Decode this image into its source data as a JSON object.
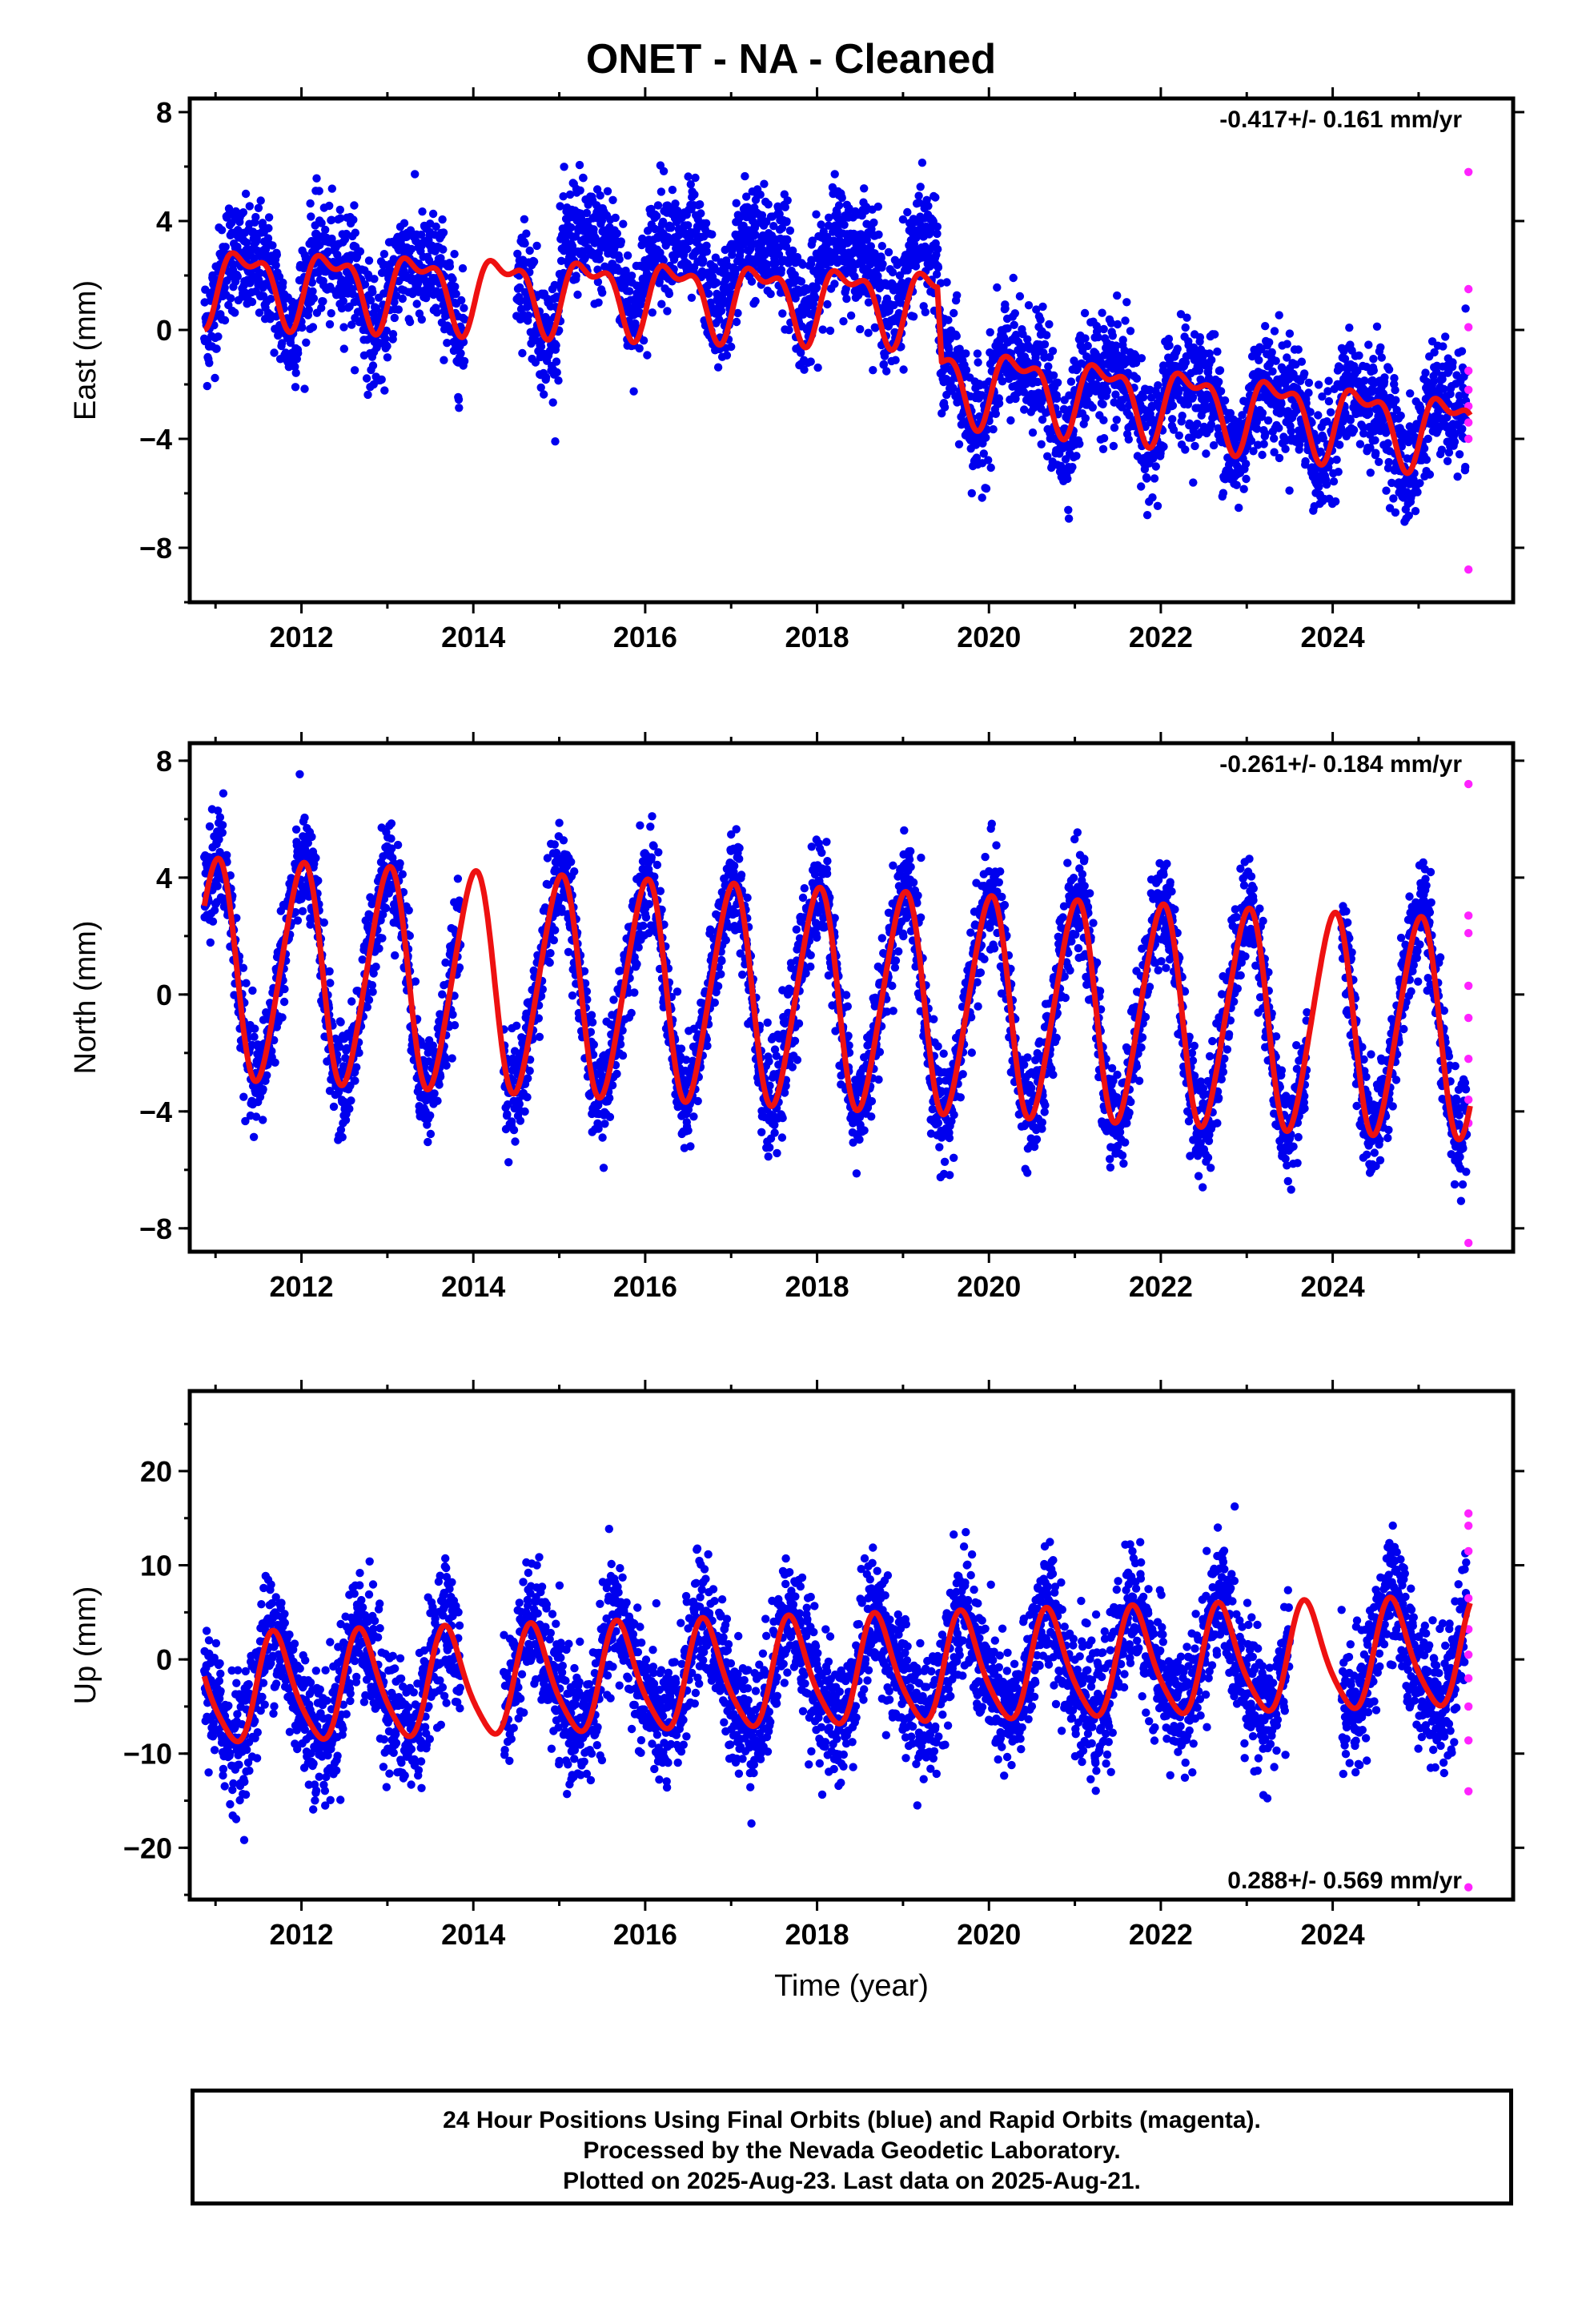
{
  "title": "ONET  - NA - Cleaned",
  "colors": {
    "final": "#0000ee",
    "rapid": "#ff22ff",
    "model": "#ee1111"
  },
  "chart_data": [
    {
      "type": "scatter",
      "component": "East",
      "ylabel": "East (mm)",
      "xlim": [
        2010.7,
        2026.1
      ],
      "ylim": [
        -10,
        8.5
      ],
      "yticks": [
        8,
        4,
        0,
        -4,
        -8
      ],
      "xticks": [
        2012,
        2014,
        2016,
        2018,
        2020,
        2022,
        2024
      ],
      "rate_label": "-0.417+/- 0.161 mm/yr",
      "rate_position": "top-right",
      "trend": {
        "offsets": [
          [
            2010.85,
            1.8
          ],
          [
            2019.4,
            1.0
          ],
          [
            2019.45,
            -1.8
          ],
          [
            2025.6,
            -3.7
          ]
        ],
        "annual_amp": 1.2,
        "semi_amp": 0.6
      },
      "scatter_sd": 1.4,
      "gaps": [
        [
          2013.9,
          2014.5
        ]
      ],
      "rapid_points_x": 2025.58,
      "rapid_points_y": [
        5.8,
        1.5,
        0.1,
        -1.5,
        -2.2,
        -2.8,
        -3.4,
        -4.0,
        -8.8
      ]
    },
    {
      "type": "scatter",
      "component": "North",
      "ylabel": "North (mm)",
      "xlim": [
        2010.7,
        2026.1
      ],
      "ylim": [
        -8.8,
        8.6
      ],
      "yticks": [
        8,
        4,
        0,
        -4,
        -8
      ],
      "xticks": [
        2012,
        2014,
        2016,
        2018,
        2020,
        2022,
        2024
      ],
      "rate_label": "-0.261+/- 0.184 mm/yr",
      "rate_position": "top-right",
      "trend": {
        "offsets": [
          [
            2010.85,
            0.9
          ],
          [
            2025.6,
            -1.2
          ]
        ],
        "annual_amp": 3.7,
        "semi_amp": 0.4
      },
      "scatter_sd": 1.2,
      "gaps": [
        [
          2013.85,
          2014.35
        ],
        [
          2023.7,
          2024.1
        ]
      ],
      "rapid_points_x": 2025.58,
      "rapid_points_y": [
        7.2,
        2.7,
        2.1,
        0.3,
        -0.8,
        -2.2,
        -3.6,
        -4.4,
        -8.5
      ]
    },
    {
      "type": "scatter",
      "component": "Up",
      "ylabel": "Up (mm)",
      "xlabel": "Time (year)",
      "xlim": [
        2010.7,
        2026.1
      ],
      "ylim": [
        -25.5,
        28.5
      ],
      "yticks": [
        20,
        10,
        0,
        -10,
        -20
      ],
      "xticks": [
        2012,
        2014,
        2016,
        2018,
        2020,
        2022,
        2024
      ],
      "rate_label": "0.288+/- 0.569 mm/yr",
      "rate_position": "bottom-right",
      "trend": {
        "offsets": [
          [
            2010.85,
            -3.5
          ],
          [
            2025.6,
            0.5
          ]
        ],
        "annual_amp": 5.6,
        "semi_amp": 1.0
      },
      "scatter_sd": 4.5,
      "gaps": [
        [
          2013.85,
          2014.35
        ],
        [
          2023.5,
          2024.1
        ]
      ],
      "rapid_points_x": 2025.58,
      "rapid_points_y": [
        15.5,
        14.2,
        11.5,
        6.5,
        3.2,
        0.5,
        -2.0,
        -5.0,
        -8.6,
        -14.0,
        -24.2
      ]
    }
  ],
  "footer": {
    "line1": "24 Hour Positions Using Final Orbits (blue) and Rapid Orbits (magenta).",
    "line2": "Processed by the Nevada Geodetic Laboratory.",
    "line3": "Plotted on 2025-Aug-23. Last data on 2025-Aug-21."
  }
}
